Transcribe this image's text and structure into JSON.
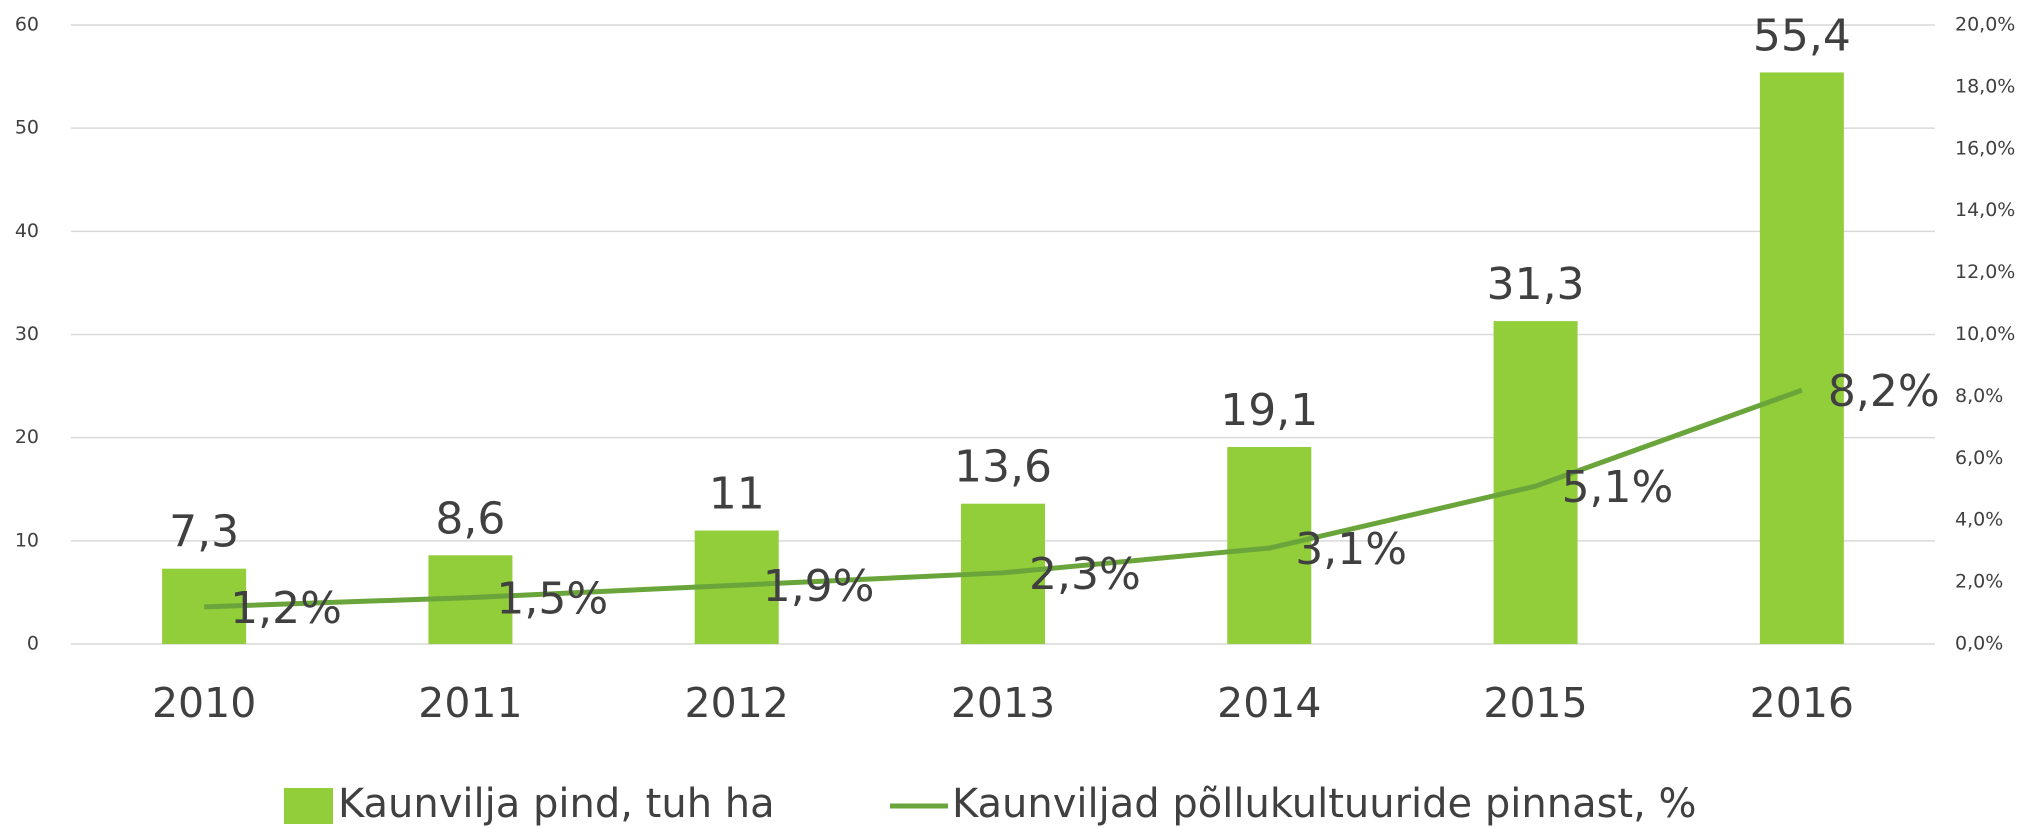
{
  "chart_data": {
    "type": "bar",
    "categories": [
      "2010",
      "2011",
      "2012",
      "2013",
      "2014",
      "2015",
      "2016"
    ],
    "series": [
      {
        "name": "Kaunvilja pind, tuh ha",
        "type": "bar",
        "color": "#92cd3a",
        "values": [
          7.3,
          8.6,
          11,
          13.6,
          19.1,
          31.3,
          55.4
        ],
        "value_labels": [
          "7,3",
          "8,6",
          "11",
          "13,6",
          "19,1",
          "31,3",
          "55,4"
        ]
      },
      {
        "name": "Kaunviljad põllukultuuride pinnast, %",
        "type": "line",
        "axis": "y2",
        "color": "#6aa53c",
        "values": [
          1.2,
          1.5,
          1.9,
          2.3,
          3.1,
          5.1,
          8.2
        ],
        "value_labels": [
          "1,2%",
          "1,5%",
          "1,9%",
          "2,3%",
          "3,1%",
          "5,1%",
          "8,2%"
        ]
      }
    ],
    "ylim": [
      0,
      60
    ],
    "yticks": [
      0,
      10,
      20,
      30,
      40,
      50,
      60
    ],
    "y2lim": [
      0,
      20
    ],
    "y2ticks": [
      {
        "value": 0,
        "label": "0,0%"
      },
      {
        "value": 2,
        "label": "2,0%"
      },
      {
        "value": 4,
        "label": "4,0%"
      },
      {
        "value": 6,
        "label": "6,0%"
      },
      {
        "value": 8,
        "label": "8,0%"
      },
      {
        "value": 10,
        "label": "10,0%"
      },
      {
        "value": 12,
        "label": "12,0%"
      },
      {
        "value": 14,
        "label": "14,0%"
      },
      {
        "value": 16,
        "label": "16,0%"
      },
      {
        "value": 18,
        "label": "18,0%"
      },
      {
        "value": 20,
        "label": "20,0%"
      }
    ],
    "grid": true,
    "legend": "bottom"
  }
}
